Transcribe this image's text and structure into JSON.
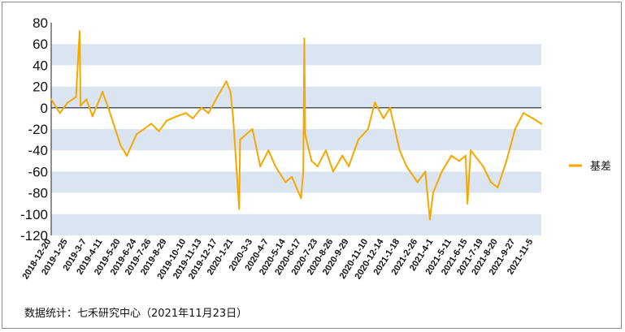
{
  "chart_data": {
    "type": "line",
    "title": "",
    "xlabel": "",
    "ylabel": "",
    "ylim": [
      -120,
      80
    ],
    "yticks": [
      80,
      60,
      40,
      20,
      0,
      -20,
      -40,
      -60,
      -80,
      -100,
      -120
    ],
    "grid": "alternating horizontal bands",
    "legend": "right",
    "x_tick_labels": [
      "2018-12-20",
      "2019-1-25",
      "2019-3-7",
      "2019-4-11",
      "2019-5-20",
      "2019-6-24",
      "2019-7-26",
      "2019-8-29",
      "2019-10-10",
      "2019-11-13",
      "2019-12-17",
      "2020-1-21",
      "2020-3-3",
      "2020-4-7",
      "2020-5-14",
      "2020-6-17",
      "2020-7-23",
      "2020-8-26",
      "2020-9-29",
      "2020-11-10",
      "2020-12-14",
      "2021-1-18",
      "2021-2-26",
      "2021-4-1",
      "2021-5-11",
      "2021-6-15",
      "2021-7-19",
      "2021-8-20",
      "2021-9-27",
      "2021-11-5"
    ],
    "series": [
      {
        "name": "基差",
        "color": "#f5a800",
        "x": [
          "2018-12-20",
          "2019-1-8",
          "2019-1-25",
          "2019-2-12",
          "2019-2-20",
          "2019-2-22",
          "2019-3-7",
          "2019-3-20",
          "2019-4-11",
          "2019-4-25",
          "2019-5-20",
          "2019-6-3",
          "2019-6-24",
          "2019-7-10",
          "2019-7-26",
          "2019-8-12",
          "2019-8-29",
          "2019-9-20",
          "2019-10-10",
          "2019-10-25",
          "2019-11-13",
          "2019-11-28",
          "2019-12-17",
          "2020-1-6",
          "2020-1-15",
          "2020-1-21",
          "2020-2-3",
          "2020-2-5",
          "2020-2-18",
          "2020-3-3",
          "2020-3-20",
          "2020-4-7",
          "2020-4-22",
          "2020-5-14",
          "2020-5-28",
          "2020-6-17",
          "2020-6-22",
          "2020-6-24",
          "2020-6-26",
          "2020-7-10",
          "2020-7-23",
          "2020-8-10",
          "2020-8-26",
          "2020-9-15",
          "2020-9-29",
          "2020-10-20",
          "2020-11-10",
          "2020-11-25",
          "2020-12-14",
          "2020-12-28",
          "2021-1-18",
          "2021-2-2",
          "2021-2-26",
          "2021-3-15",
          "2021-3-25",
          "2021-4-1",
          "2021-4-20",
          "2021-5-11",
          "2021-5-28",
          "2021-6-11",
          "2021-6-15",
          "2021-6-22",
          "2021-7-19",
          "2021-8-5",
          "2021-8-20",
          "2021-9-8",
          "2021-9-27",
          "2021-10-15",
          "2021-11-5",
          "2021-11-23"
        ],
        "values": [
          8,
          -5,
          5,
          10,
          72,
          2,
          8,
          -8,
          15,
          -2,
          -35,
          -45,
          -25,
          -20,
          -15,
          -22,
          -12,
          -8,
          -5,
          -10,
          0,
          -5,
          10,
          25,
          15,
          -10,
          -95,
          -30,
          -25,
          -20,
          -55,
          -40,
          -55,
          -70,
          -65,
          -85,
          -60,
          65,
          -25,
          -50,
          -55,
          -40,
          -60,
          -45,
          -55,
          -30,
          -20,
          5,
          -10,
          0,
          -40,
          -55,
          -70,
          -60,
          -105,
          -80,
          -60,
          -45,
          -50,
          -45,
          -90,
          -40,
          -55,
          -70,
          -75,
          -50,
          -20,
          -5,
          -10,
          -15
        ]
      }
    ]
  },
  "source": "数据统计：七禾研究中心（2021年11月23日）"
}
